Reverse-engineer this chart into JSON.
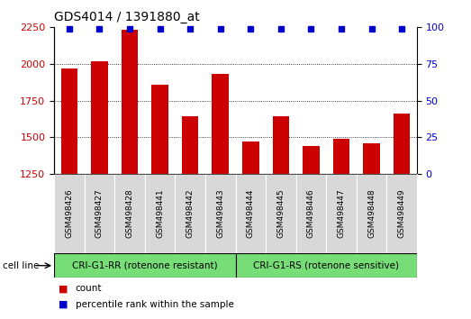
{
  "title": "GDS4014 / 1391880_at",
  "categories": [
    "GSM498426",
    "GSM498427",
    "GSM498428",
    "GSM498441",
    "GSM498442",
    "GSM498443",
    "GSM498444",
    "GSM498445",
    "GSM498446",
    "GSM498447",
    "GSM498448",
    "GSM498449"
  ],
  "bar_values": [
    1970,
    2020,
    2230,
    1860,
    1640,
    1930,
    1470,
    1640,
    1440,
    1490,
    1460,
    1660
  ],
  "percentile_values": [
    99,
    99,
    99,
    99,
    99,
    99,
    99,
    99,
    99,
    99,
    99,
    99
  ],
  "bar_color": "#cc0000",
  "dot_color": "#0000cc",
  "ylim_left": [
    1250,
    2250
  ],
  "ylim_right": [
    0,
    100
  ],
  "yticks_left": [
    1250,
    1500,
    1750,
    2000,
    2250
  ],
  "yticks_right": [
    0,
    25,
    50,
    75,
    100
  ],
  "group1_label": "CRI-G1-RR (rotenone resistant)",
  "group2_label": "CRI-G1-RS (rotenone sensitive)",
  "group1_count": 6,
  "group2_count": 6,
  "group_bg_color": "#77dd77",
  "cell_line_label": "cell line",
  "legend_count_label": "count",
  "legend_pct_label": "percentile rank within the sample",
  "title_fontsize": 10,
  "tick_label_fontsize": 6.5,
  "bar_width": 0.55,
  "tick_area_bg": "#d8d8d8",
  "plot_bg": "#ffffff",
  "gridline_color": "#000000",
  "gridline_lw": 0.6
}
